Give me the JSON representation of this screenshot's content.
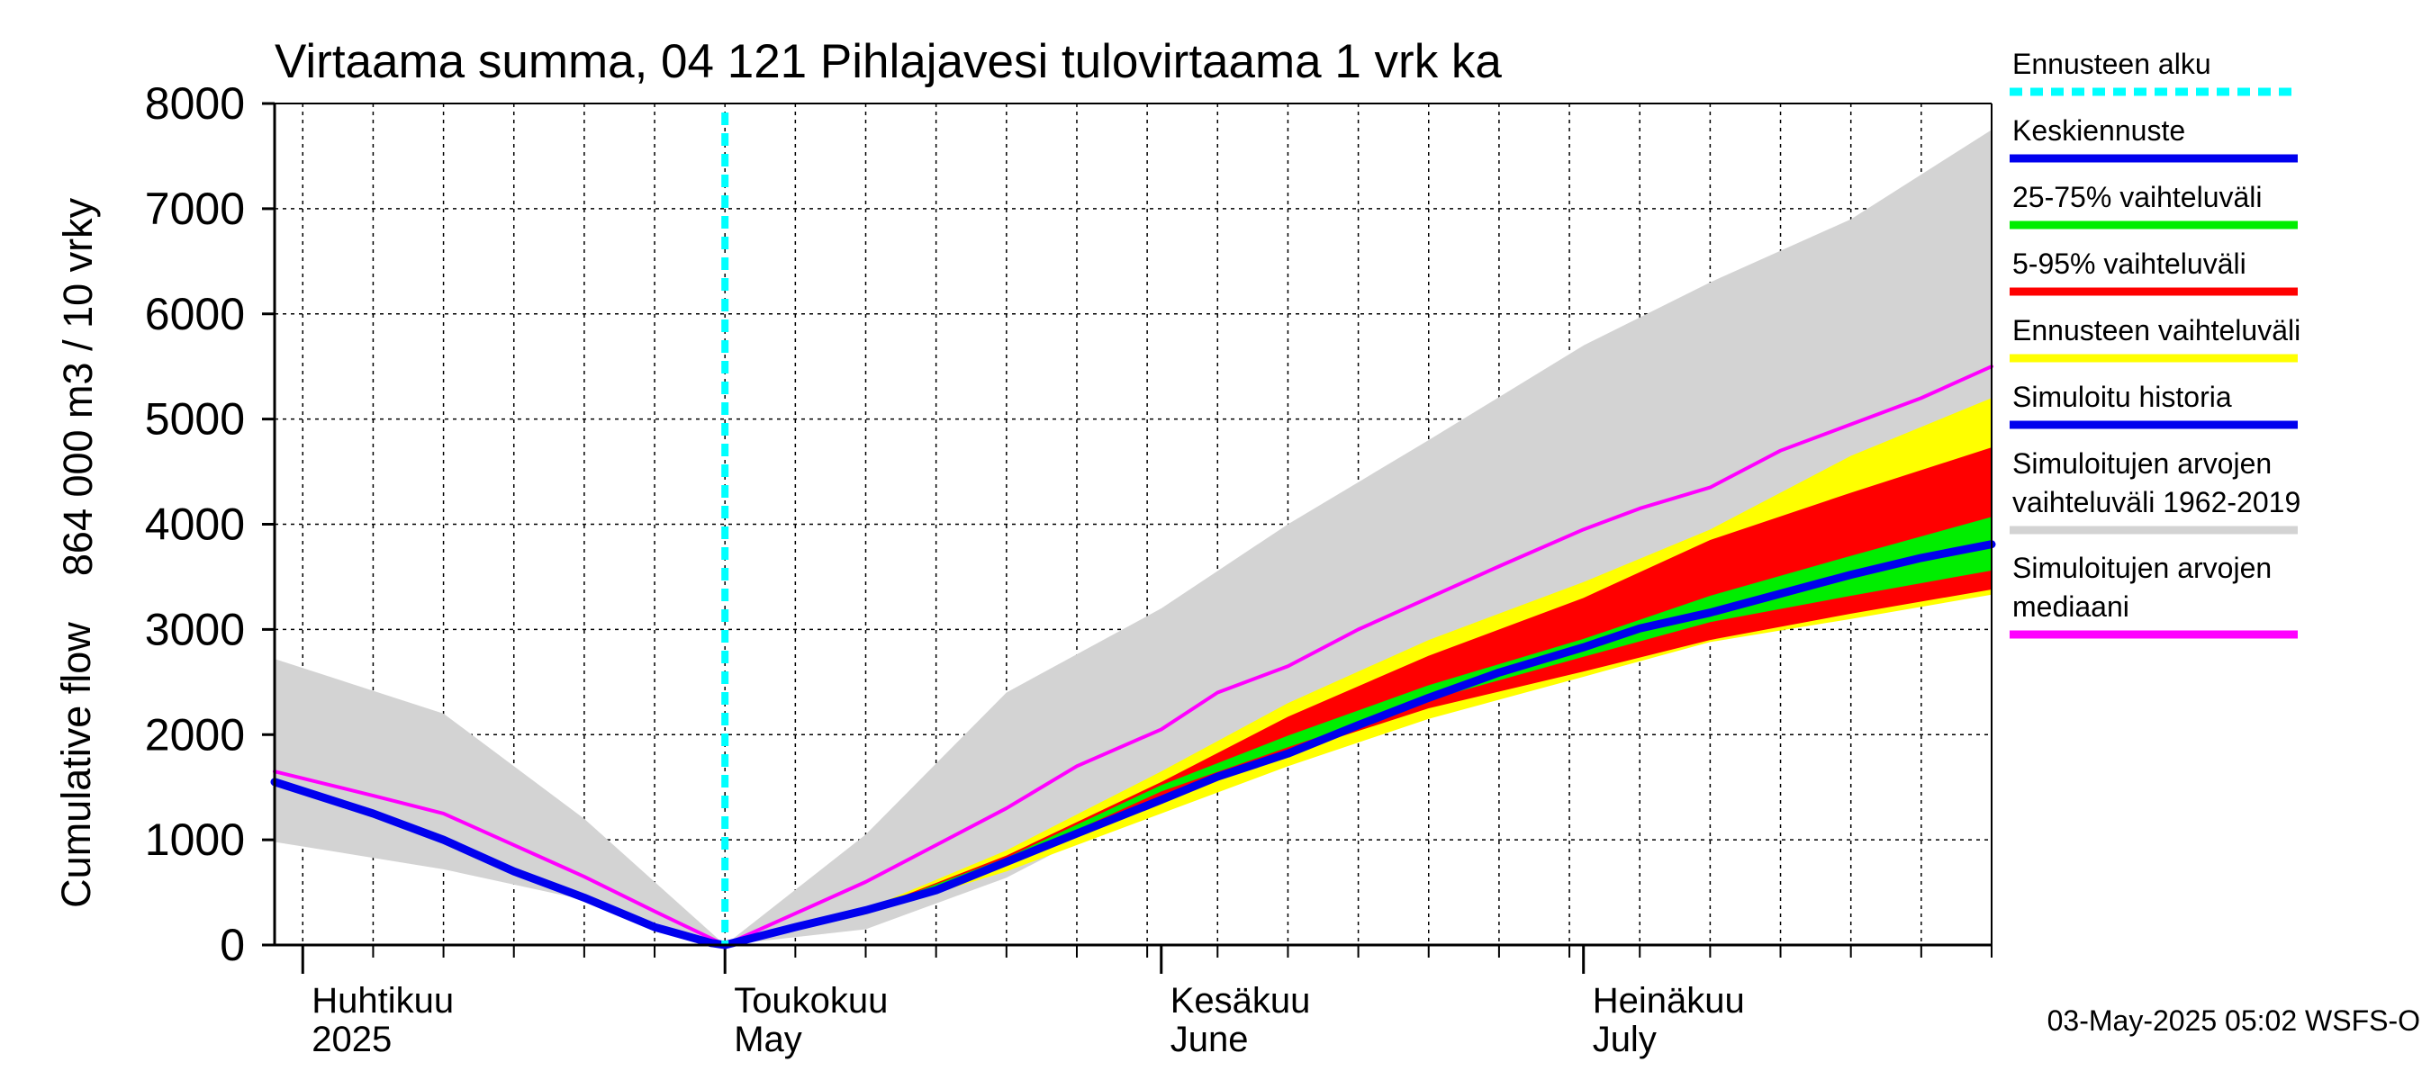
{
  "chart_data": {
    "type": "area",
    "title": "Virtaama summa, 04 121 Pihlajavesi tulovirtaama 1 vrk ka",
    "ylabel_lines": [
      "864 000 m3 / 10 vrky",
      "Cumulative flow"
    ],
    "ylim": [
      0,
      8000
    ],
    "yticks": [
      "0",
      "1000",
      "2000",
      "3000",
      "4000",
      "5000",
      "6000",
      "7000",
      "8000"
    ],
    "x_range_days": [
      -32,
      90
    ],
    "forecast_start_day": 0,
    "month_labels": [
      {
        "day": -30,
        "line1": "Huhtikuu",
        "line2": "2025"
      },
      {
        "day": 0,
        "line1": "Toukokuu",
        "line2": "May"
      },
      {
        "day": 31,
        "line1": "Kesäkuu",
        "line2": "June"
      },
      {
        "day": 61,
        "line1": "Heinäkuu",
        "line2": "July"
      }
    ],
    "series": [
      {
        "name": "Simuloitujen arvojen vaihteluväli 1962-2019",
        "kind": "band",
        "color": "#d3d3d3",
        "x": [
          -32,
          -20,
          -10,
          0,
          10,
          20,
          31,
          40,
          50,
          61,
          70,
          80,
          90
        ],
        "low": [
          980,
          720,
          430,
          0,
          150,
          640,
          1400,
          1800,
          2200,
          2600,
          3000,
          3300,
          3450
        ],
        "high": [
          2720,
          2200,
          1200,
          0,
          1050,
          2400,
          3200,
          4000,
          4800,
          5700,
          6300,
          6900,
          7750
        ]
      },
      {
        "name": "Ennusteen vaihteluväli",
        "kind": "band",
        "color": "#ffff00",
        "x": [
          0,
          10,
          20,
          31,
          40,
          50,
          61,
          70,
          80,
          90
        ],
        "low": [
          0,
          290,
          700,
          1250,
          1700,
          2150,
          2550,
          2880,
          3100,
          3330
        ],
        "high": [
          0,
          340,
          900,
          1650,
          2300,
          2900,
          3450,
          3950,
          4650,
          5200
        ]
      },
      {
        "name": "5-95% vaihteluväli",
        "kind": "band",
        "color": "#ff0000",
        "x": [
          0,
          10,
          20,
          31,
          40,
          50,
          61,
          70,
          80,
          90
        ],
        "low": [
          0,
          300,
          760,
          1400,
          1820,
          2250,
          2600,
          2900,
          3150,
          3380
        ],
        "high": [
          0,
          330,
          850,
          1550,
          2170,
          2750,
          3300,
          3850,
          4300,
          4730
        ]
      },
      {
        "name": "25-75% vaihteluväli",
        "kind": "band",
        "color": "#00ee00",
        "x": [
          0,
          10,
          20,
          31,
          40,
          50,
          61,
          70,
          80,
          90
        ],
        "low": [
          0,
          310,
          790,
          1460,
          1880,
          2330,
          2740,
          3070,
          3320,
          3560
        ],
        "high": [
          0,
          325,
          830,
          1520,
          1990,
          2470,
          2910,
          3320,
          3700,
          4070
        ]
      },
      {
        "name": "Simuloitujen arvojen mediaani",
        "kind": "line",
        "color": "#ff00ff",
        "width": 4,
        "x": [
          -32,
          -25,
          -20,
          -15,
          -10,
          -5,
          0,
          5,
          10,
          15,
          20,
          25,
          31,
          35,
          40,
          45,
          50,
          55,
          61,
          65,
          70,
          75,
          80,
          85,
          90
        ],
        "y": [
          1650,
          1420,
          1250,
          950,
          650,
          320,
          0,
          300,
          600,
          950,
          1300,
          1700,
          2050,
          2400,
          2650,
          3000,
          3300,
          3600,
          3950,
          4150,
          4350,
          4700,
          4950,
          5200,
          5500
        ]
      },
      {
        "name": "Simuloitu historia",
        "kind": "line",
        "color": "#0000ee",
        "width": 9,
        "x": [
          -32,
          -25,
          -20,
          -15,
          -10,
          -5,
          -1
        ],
        "y": [
          1550,
          1250,
          1000,
          700,
          450,
          170,
          20
        ]
      },
      {
        "name": "Keskiennuste",
        "kind": "line",
        "color": "#0000ee",
        "width": 9,
        "x": [
          -1,
          0,
          5,
          10,
          15,
          20,
          25,
          31,
          35,
          40,
          45,
          50,
          55,
          61,
          65,
          70,
          75,
          80,
          85,
          90
        ],
        "y": [
          20,
          0,
          170,
          330,
          520,
          790,
          1060,
          1380,
          1600,
          1820,
          2090,
          2350,
          2590,
          2830,
          3010,
          3160,
          3340,
          3520,
          3680,
          3810
        ]
      }
    ]
  },
  "legend": [
    {
      "line1": "Ennusteen alku",
      "line2": "",
      "color": "#00ffff",
      "dashed": true
    },
    {
      "line1": "Keskiennuste",
      "line2": "",
      "color": "#0000ee",
      "dashed": false
    },
    {
      "line1": "25-75% vaihteluväli",
      "line2": "",
      "color": "#00ee00",
      "dashed": false
    },
    {
      "line1": "5-95% vaihteluväli",
      "line2": "",
      "color": "#ff0000",
      "dashed": false
    },
    {
      "line1": "Ennusteen vaihteluväli",
      "line2": "",
      "color": "#ffff00",
      "dashed": false
    },
    {
      "line1": "Simuloitu historia",
      "line2": "",
      "color": "#0000ee",
      "dashed": false
    },
    {
      "line1": "Simuloitujen arvojen",
      "line2": "vaihteluväli 1962-2019",
      "color": "#d3d3d3",
      "dashed": false
    },
    {
      "line1": "Simuloitujen arvojen",
      "line2": "mediaani",
      "color": "#ff00ff",
      "dashed": false
    }
  ],
  "footer": "03-May-2025 05:02 WSFS-O"
}
